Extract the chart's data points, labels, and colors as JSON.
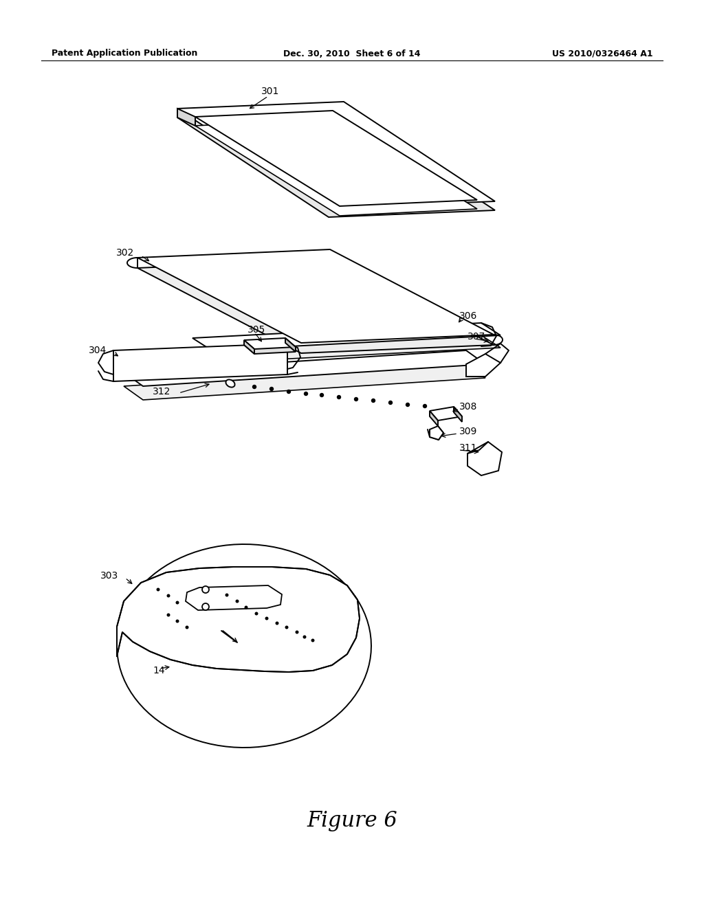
{
  "background_color": "#ffffff",
  "header_left": "Patent Application Publication",
  "header_center": "Dec. 30, 2010  Sheet 6 of 14",
  "header_right": "US 2010/0326464 A1",
  "figure_label": "Figure 6",
  "line_color": "#000000",
  "lw": 1.4
}
